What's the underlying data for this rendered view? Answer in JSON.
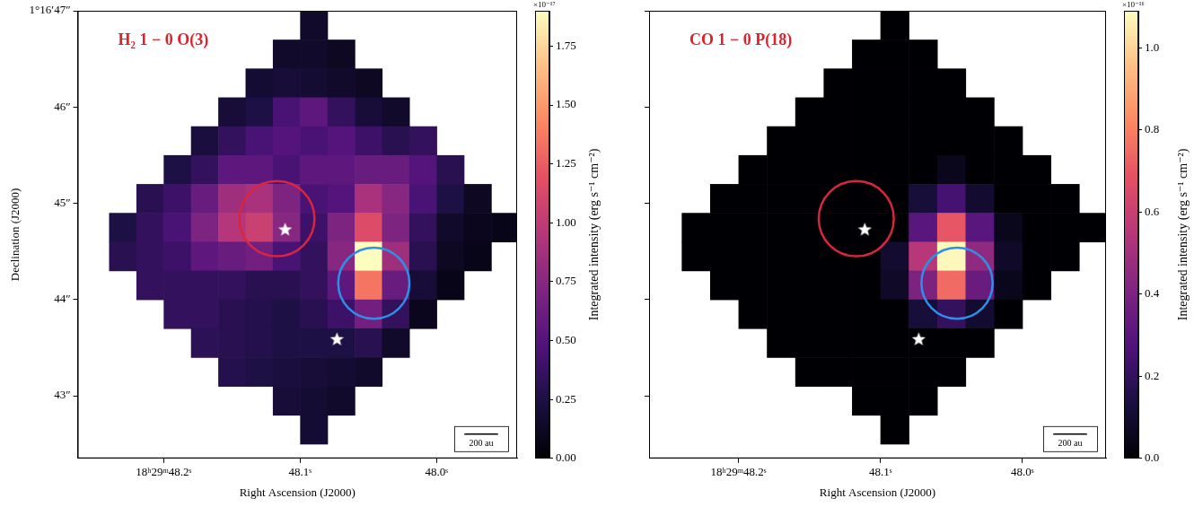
{
  "chart_data": [
    {
      "type": "heatmap",
      "title": "H₂ 1 − 0 O(3)",
      "x_label": "Right Ascension (J2000)",
      "y_label": "Declination (J2000)",
      "xlim": [
        48.263,
        47.941
      ],
      "xticks": [
        {
          "value": 48.2,
          "label": "18ʰ29ᵐ48.2ˢ"
        },
        {
          "value": 48.1,
          "label": "48.1ˢ"
        },
        {
          "value": 48.0,
          "label": "48.0ˢ"
        }
      ],
      "ylim": [
        42.35,
        47.0
      ],
      "yticks": [
        {
          "value": 43,
          "label": "43″"
        },
        {
          "value": 44,
          "label": "44″"
        },
        {
          "value": 45,
          "label": "45″"
        },
        {
          "value": 46,
          "label": "46″"
        },
        {
          "value": 47,
          "label": "1°16′47″"
        }
      ],
      "ra_centers": [
        48.25,
        48.23,
        48.21,
        48.19,
        48.17,
        48.15,
        48.13,
        48.11,
        48.09,
        48.07,
        48.05,
        48.03,
        48.01,
        47.99,
        47.97,
        47.95
      ],
      "dec_centers": [
        46.85,
        46.55,
        46.25,
        45.95,
        45.65,
        45.35,
        45.05,
        44.75,
        44.45,
        44.15,
        43.85,
        43.55,
        43.25,
        42.95,
        42.65
      ],
      "cells": [
        [
          null,
          null,
          null,
          null,
          null,
          null,
          null,
          null,
          0.15,
          null,
          null,
          null,
          null,
          null,
          null,
          null
        ],
        [
          null,
          null,
          null,
          null,
          null,
          null,
          null,
          0.15,
          0.15,
          0.12,
          null,
          null,
          null,
          null,
          null,
          null
        ],
        [
          null,
          null,
          null,
          null,
          null,
          null,
          0.18,
          0.2,
          0.18,
          0.15,
          0.12,
          null,
          null,
          null,
          null,
          null
        ],
        [
          null,
          null,
          null,
          null,
          null,
          0.2,
          0.25,
          0.45,
          0.55,
          0.35,
          0.2,
          0.15,
          null,
          null,
          null,
          null
        ],
        [
          null,
          null,
          null,
          null,
          0.22,
          0.35,
          0.45,
          0.5,
          0.45,
          0.5,
          0.4,
          0.3,
          0.35,
          null,
          null,
          null
        ],
        [
          null,
          null,
          null,
          0.25,
          0.35,
          0.55,
          0.55,
          0.45,
          0.55,
          0.55,
          0.6,
          0.6,
          0.5,
          0.3,
          null,
          null
        ],
        [
          null,
          null,
          0.3,
          0.4,
          0.6,
          0.85,
          0.9,
          0.7,
          0.45,
          0.5,
          0.9,
          0.75,
          0.45,
          0.25,
          0.12,
          null
        ],
        [
          null,
          0.25,
          0.35,
          0.45,
          0.7,
          0.95,
          1.05,
          0.75,
          0.4,
          0.7,
          1.15,
          0.7,
          0.35,
          0.15,
          0.1,
          0.08
        ],
        [
          null,
          0.3,
          0.35,
          0.4,
          0.55,
          0.6,
          0.65,
          0.45,
          0.35,
          0.75,
          1.9,
          0.85,
          0.3,
          0.12,
          0.08,
          null
        ],
        [
          null,
          null,
          0.35,
          0.35,
          0.35,
          0.35,
          0.3,
          0.3,
          0.35,
          0.55,
          1.35,
          0.6,
          0.2,
          0.08,
          null,
          null
        ],
        [
          null,
          null,
          null,
          0.35,
          0.35,
          0.3,
          0.28,
          0.25,
          0.3,
          0.4,
          0.65,
          0.35,
          0.1,
          null,
          null,
          null
        ],
        [
          null,
          null,
          null,
          null,
          0.32,
          0.3,
          0.28,
          0.25,
          0.25,
          0.25,
          0.3,
          0.15,
          null,
          null,
          null,
          null
        ],
        [
          null,
          null,
          null,
          null,
          null,
          0.28,
          0.25,
          0.22,
          0.2,
          0.18,
          0.15,
          null,
          null,
          null,
          null,
          null
        ],
        [
          null,
          null,
          null,
          null,
          null,
          null,
          null,
          0.2,
          0.18,
          0.15,
          null,
          null,
          null,
          null,
          null,
          null
        ],
        [
          null,
          null,
          null,
          null,
          null,
          null,
          null,
          null,
          0.18,
          null,
          null,
          null,
          null,
          null,
          null,
          null
        ]
      ],
      "colorbar": {
        "label": "Integrated intensity (erg s⁻¹ cm⁻²)",
        "multiplier": "×10⁻¹⁷",
        "range": [
          0,
          1.9
        ],
        "ticks": [
          {
            "value": 0,
            "label": "0.00"
          },
          0.25,
          {
            "value": 0.5,
            "label": "0.50"
          },
          0.75,
          {
            "value": 1,
            "label": "1.00"
          },
          1.25,
          {
            "value": 1.5,
            "label": "1.50"
          },
          1.75
        ]
      },
      "apertures": [
        {
          "ra": 48.117,
          "dec": 44.84,
          "radius": 0.39,
          "color": "#d7263d"
        },
        {
          "ra": 48.046,
          "dec": 44.17,
          "radius": 0.37,
          "color": "#2e8fe6"
        }
      ],
      "stars": [
        {
          "ra": 48.111,
          "dec": 44.73
        },
        {
          "ra": 48.073,
          "dec": 43.59
        }
      ],
      "scalebar": {
        "label": "200 au",
        "length": 0.35
      }
    },
    {
      "type": "heatmap",
      "title": "CO 1 − 0 P(18)",
      "x_label": "Right Ascension (J2000)",
      "tick_labels": "x",
      "xlim": [
        48.263,
        47.941
      ],
      "xticks": [
        {
          "value": 48.2,
          "label": "18ʰ29ᵐ48.2ˢ"
        },
        {
          "value": 48.1,
          "label": "48.1ˢ"
        },
        {
          "value": 48.0,
          "label": "48.0ˢ"
        }
      ],
      "ylim": [
        42.35,
        47.0
      ],
      "yticks": [
        43,
        44,
        45,
        46,
        47
      ],
      "ra_centers": [
        48.25,
        48.23,
        48.21,
        48.19,
        48.17,
        48.15,
        48.13,
        48.11,
        48.09,
        48.07,
        48.05,
        48.03,
        48.01,
        47.99,
        47.97,
        47.95
      ],
      "dec_centers": [
        46.85,
        46.55,
        46.25,
        45.95,
        45.65,
        45.35,
        45.05,
        44.75,
        44.45,
        44.15,
        43.85,
        43.55,
        43.25,
        42.95,
        42.65
      ],
      "cells": [
        [
          null,
          null,
          null,
          null,
          null,
          null,
          null,
          null,
          0,
          null,
          null,
          null,
          null,
          null,
          null,
          null
        ],
        [
          null,
          null,
          null,
          null,
          null,
          null,
          null,
          0,
          0,
          0,
          null,
          null,
          null,
          null,
          null,
          null
        ],
        [
          null,
          null,
          null,
          null,
          null,
          null,
          0,
          0,
          0,
          0,
          0,
          null,
          null,
          null,
          null,
          null
        ],
        [
          null,
          null,
          null,
          null,
          null,
          0,
          0,
          0,
          0,
          0,
          0,
          0,
          null,
          null,
          null,
          null
        ],
        [
          null,
          null,
          null,
          null,
          0,
          0,
          0,
          0,
          0,
          0,
          0,
          0,
          0,
          null,
          null,
          null
        ],
        [
          null,
          null,
          null,
          0,
          0,
          0,
          0,
          0,
          0,
          0,
          0.05,
          0,
          0,
          0,
          null,
          null
        ],
        [
          null,
          null,
          0,
          0,
          0,
          0,
          0,
          0,
          0,
          0.12,
          0.25,
          0.1,
          0,
          0,
          0,
          null
        ],
        [
          null,
          0,
          0,
          0,
          0,
          0,
          0,
          0,
          0,
          0.3,
          0.7,
          0.3,
          0.05,
          0,
          0,
          0
        ],
        [
          null,
          0,
          0,
          0,
          0,
          0,
          0,
          0,
          0.1,
          0.55,
          1.08,
          0.45,
          0.08,
          0,
          0,
          null
        ],
        [
          null,
          null,
          0,
          0,
          0,
          0,
          0,
          0,
          0.08,
          0.4,
          0.75,
          0.35,
          0.05,
          0,
          null,
          null
        ],
        [
          null,
          null,
          null,
          0,
          0,
          0,
          0,
          0,
          0,
          0.12,
          0.2,
          0.1,
          0,
          null,
          null,
          null
        ],
        [
          null,
          null,
          null,
          null,
          0,
          0,
          0,
          0,
          0,
          0,
          0,
          0,
          null,
          null,
          null,
          null
        ],
        [
          null,
          null,
          null,
          null,
          null,
          0,
          0,
          0,
          0,
          0,
          0,
          null,
          null,
          null,
          null,
          null
        ],
        [
          null,
          null,
          null,
          null,
          null,
          null,
          null,
          0,
          0,
          0,
          null,
          null,
          null,
          null,
          null,
          null
        ],
        [
          null,
          null,
          null,
          null,
          null,
          null,
          null,
          null,
          0,
          null,
          null,
          null,
          null,
          null,
          null,
          null
        ]
      ],
      "colorbar": {
        "label": "Integrated intensity (erg s⁻¹ cm⁻²)",
        "multiplier": "×10⁻¹⁶",
        "range": [
          0,
          1.09
        ],
        "ticks": [
          {
            "value": 0,
            "label": "0.0"
          },
          0.2,
          0.4,
          0.6,
          0.8,
          {
            "value": 1,
            "label": "1.0"
          }
        ]
      },
      "apertures": [
        {
          "ra": 48.117,
          "dec": 44.84,
          "radius": 0.39,
          "color": "#d7263d"
        },
        {
          "ra": 48.046,
          "dec": 44.17,
          "radius": 0.37,
          "color": "#2e8fe6"
        }
      ],
      "stars": [
        {
          "ra": 48.111,
          "dec": 44.73
        },
        {
          "ra": 48.073,
          "dec": 43.59
        }
      ],
      "scalebar": {
        "label": "200 au",
        "length": 0.35
      }
    }
  ]
}
